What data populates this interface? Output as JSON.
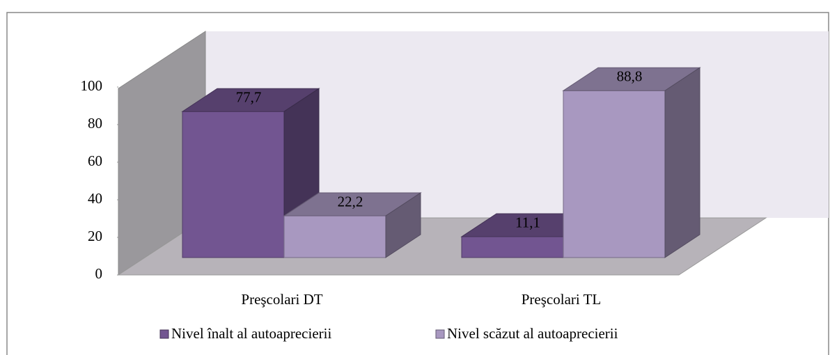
{
  "chart_data": {
    "type": "bar3d",
    "categories": [
      "Preşcolari DT",
      "Preşcolari TL"
    ],
    "series": [
      {
        "name": "Nivel înalt al autoaprecierii",
        "color": "#725591",
        "values": [
          77.7,
          11.1
        ],
        "value_labels": [
          "77,7",
          "11,1"
        ]
      },
      {
        "name": "Nivel scăzut al autoaprecierii",
        "color": "#a898c0",
        "values": [
          22.2,
          88.8
        ],
        "value_labels": [
          "22,2",
          "88,8"
        ]
      }
    ],
    "ylim": [
      0,
      100
    ],
    "yticks": [
      0,
      20,
      40,
      60,
      80,
      100
    ]
  }
}
